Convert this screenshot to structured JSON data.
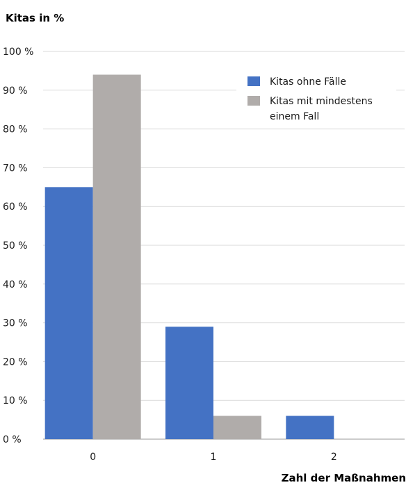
{
  "chart_data": {
    "type": "bar",
    "ylabel": "Kitas in %",
    "xlabel": "Zahl der Maßnahmen",
    "categories": [
      "0",
      "1",
      "2"
    ],
    "ylim": [
      0,
      100
    ],
    "yticks": [
      "0 %",
      "10 %",
      "20 %",
      "30 %",
      "40 %",
      "50 %",
      "60 %",
      "70 %",
      "80 %",
      "90 %",
      "100 %"
    ],
    "grid": true,
    "legend_position": "top-right",
    "series": [
      {
        "name": "Kitas ohne Fälle",
        "color": "#4472c4",
        "values": [
          65,
          29,
          6
        ]
      },
      {
        "name": "Kitas mit mindestens einem Fall",
        "color": "#b0acaa",
        "values": [
          94,
          6,
          0
        ]
      }
    ],
    "legend_lines": [
      [
        "Kitas ohne Fälle"
      ],
      [
        "Kitas mit mindestens",
        "einem Fall"
      ]
    ]
  }
}
